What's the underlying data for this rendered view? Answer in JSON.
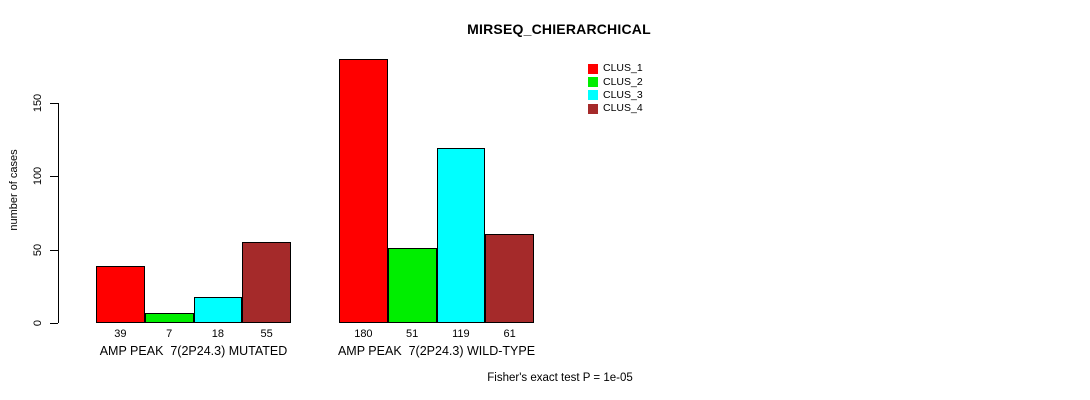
{
  "chart_data": {
    "type": "bar",
    "title": "MIRSEQ_CHIERARCHICAL",
    "xlabel": "",
    "ylabel": "number of cases",
    "ylim": [
      0,
      185
    ],
    "yticks": [
      0,
      50,
      100,
      150
    ],
    "grid": false,
    "legend_position": "top-right",
    "categories": [
      "AMP PEAK  7(2P24.3) MUTATED",
      "AMP PEAK  7(2P24.3) WILD-TYPE"
    ],
    "series": [
      {
        "name": "CLUS_1",
        "color": "#ff0000",
        "values": [
          39,
          180
        ]
      },
      {
        "name": "CLUS_2",
        "color": "#00ee00",
        "values": [
          7,
          51
        ]
      },
      {
        "name": "CLUS_3",
        "color": "#00ffff",
        "values": [
          18,
          119
        ]
      },
      {
        "name": "CLUS_4",
        "color": "#a52a2a",
        "values": [
          55,
          61
        ]
      }
    ],
    "bar_border_color": "#000000",
    "annotation": "Fisher's exact test P = 1e-05"
  }
}
